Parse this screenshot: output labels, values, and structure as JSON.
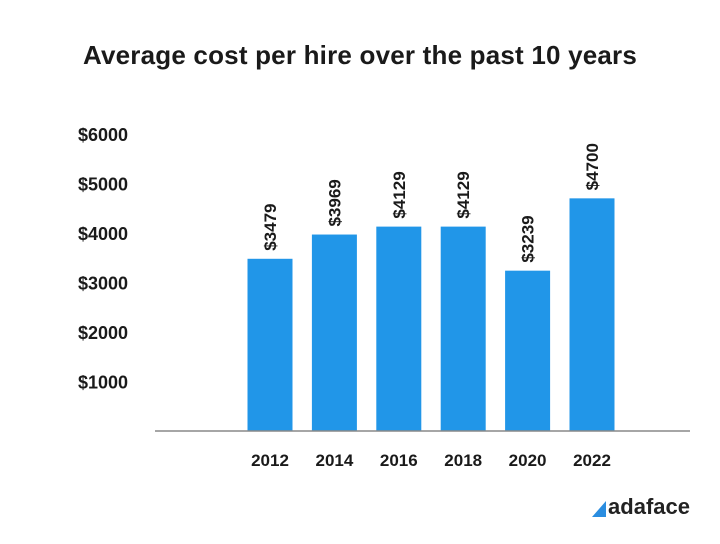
{
  "chart_data": {
    "type": "bar",
    "title": "Average cost per hire over the past 10 years",
    "categories": [
      "2012",
      "2014",
      "2016",
      "2018",
      "2020",
      "2022"
    ],
    "values": [
      3479,
      3969,
      4129,
      4129,
      3239,
      4700
    ],
    "value_labels": [
      "$3479",
      "$3969",
      "$4129",
      "$4129",
      "$3239",
      "$4700"
    ],
    "y_ticks": [
      1000,
      2000,
      3000,
      4000,
      5000,
      6000
    ],
    "y_tick_labels": [
      "$1000",
      "$2000",
      "$3000",
      "$4000",
      "$5000",
      "$6000"
    ],
    "ylim": [
      0,
      6000
    ],
    "grid": false,
    "bar_color": "#2196e8"
  },
  "brand": {
    "name": "adaface",
    "color": "#2a8de0"
  }
}
